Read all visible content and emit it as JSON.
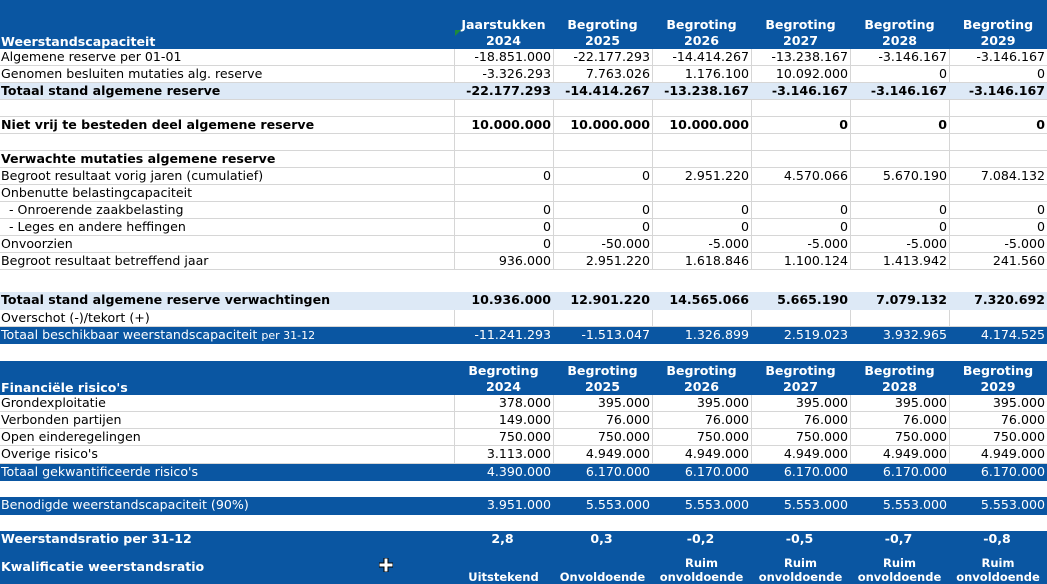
{
  "years": [
    "2024",
    "2025",
    "2026",
    "2027",
    "2028",
    "2029"
  ],
  "header1": {
    "title": "Weerstandscapaciteit",
    "cols": [
      "Jaarstukken",
      "Begroting",
      "Begroting",
      "Begroting",
      "Begroting",
      "Begroting"
    ]
  },
  "rows1": [
    {
      "label": "Algemene reserve per 01-01",
      "values": [
        "-18.851.000",
        "-22.177.293",
        "-14.414.267",
        "-13.238.167",
        "-3.146.167",
        "-3.146.167"
      ]
    },
    {
      "label": "Genomen besluiten mutaties alg. reserve",
      "values": [
        "-3.326.293",
        "7.763.026",
        "1.176.100",
        "10.092.000",
        "0",
        "0"
      ]
    },
    {
      "label": "Totaal stand algemene reserve",
      "values": [
        "-22.177.293",
        "-14.414.267",
        "-13.238.167",
        "-3.146.167",
        "-3.146.167",
        "-3.146.167"
      ]
    },
    {
      "label": "",
      "values": [
        "",
        "",
        "",
        "",
        "",
        ""
      ]
    },
    {
      "label": "Niet vrij te besteden deel algemene reserve",
      "values": [
        "10.000.000",
        "10.000.000",
        "10.000.000",
        "0",
        "0",
        "0"
      ]
    },
    {
      "label": "",
      "values": [
        "",
        "",
        "",
        "",
        "",
        ""
      ]
    },
    {
      "label": "Verwachte mutaties algemene reserve",
      "values": [
        "",
        "",
        "",
        "",
        "",
        ""
      ]
    },
    {
      "label": "Begroot resultaat vorig jaren (cumulatief)",
      "values": [
        "0",
        "0",
        "2.951.220",
        "4.570.066",
        "5.670.190",
        "7.084.132"
      ]
    },
    {
      "label": "Onbenutte belastingcapaciteit",
      "values": [
        "",
        "",
        "",
        "",
        "",
        ""
      ]
    },
    {
      "label": "  - Onroerende zaakbelasting",
      "values": [
        "0",
        "0",
        "0",
        "0",
        "0",
        "0"
      ]
    },
    {
      "label": "  - Leges en andere heffingen",
      "values": [
        "0",
        "0",
        "0",
        "0",
        "0",
        "0"
      ]
    },
    {
      "label": "Onvoorzien",
      "values": [
        "0",
        "-50.000",
        "-5.000",
        "-5.000",
        "-5.000",
        "-5.000"
      ]
    },
    {
      "label": "Begroot resultaat betreffend jaar",
      "values": [
        "936.000",
        "2.951.220",
        "1.618.846",
        "1.100.124",
        "1.413.942",
        "241.560"
      ]
    }
  ],
  "totaal_verwachtingen": {
    "label": "Totaal stand algemene reserve verwachtingen",
    "values": [
      "10.936.000",
      "12.901.220",
      "14.565.066",
      "5.665.190",
      "7.079.132",
      "7.320.692"
    ]
  },
  "overschot": {
    "label": "Overschot (-)/tekort (+)"
  },
  "beschikbaar": {
    "label": "Totaal beschikbaar weerstandscapaciteit",
    "suffix": "per 31-12",
    "values": [
      "-11.241.293",
      "-1.513.047",
      "1.326.899",
      "2.519.023",
      "3.932.965",
      "4.174.525"
    ]
  },
  "header2": {
    "title": "Financiële risico's",
    "cols": [
      "Begroting",
      "Begroting",
      "Begroting",
      "Begroting",
      "Begroting",
      "Begroting"
    ]
  },
  "rows2": [
    {
      "label": "Grondexploitatie",
      "values": [
        "378.000",
        "395.000",
        "395.000",
        "395.000",
        "395.000",
        "395.000"
      ]
    },
    {
      "label": "Verbonden partijen",
      "values": [
        "149.000",
        "76.000",
        "76.000",
        "76.000",
        "76.000",
        "76.000"
      ]
    },
    {
      "label": "Open einderegelingen",
      "values": [
        "750.000",
        "750.000",
        "750.000",
        "750.000",
        "750.000",
        "750.000"
      ]
    },
    {
      "label": "Overige risico's",
      "values": [
        "3.113.000",
        "4.949.000",
        "4.949.000",
        "4.949.000",
        "4.949.000",
        "4.949.000"
      ]
    }
  ],
  "totaal_risicos": {
    "label": "Totaal gekwantificeerde risico's",
    "values": [
      "4.390.000",
      "6.170.000",
      "6.170.000",
      "6.170.000",
      "6.170.000",
      "6.170.000"
    ]
  },
  "benodigd": {
    "label": "Benodigde weerstandscapaciteit (90%)",
    "values": [
      "3.951.000",
      "5.553.000",
      "5.553.000",
      "5.553.000",
      "5.553.000",
      "5.553.000"
    ]
  },
  "ratio": {
    "label": "Weerstandsratio per 31-12",
    "values": [
      "2,8",
      "0,3",
      "-0,2",
      "-0,5",
      "-0,7",
      "-0,8"
    ]
  },
  "kwalificatie": {
    "label": "Kwalificatie weerstandsratio",
    "values": [
      [
        "",
        "Uitstekend"
      ],
      [
        "",
        "Onvoldoende"
      ],
      [
        "Ruim",
        "onvoldoende"
      ],
      [
        "Ruim",
        "onvoldoende"
      ],
      [
        "Ruim",
        "onvoldoende"
      ],
      [
        "Ruim",
        "onvoldoende"
      ]
    ]
  },
  "icons": {
    "cursor": "crosshair-cursor-icon",
    "cell_marker": "error-triangle-icon"
  },
  "colors": {
    "header_blue": "#0a56a2",
    "total_light": "#dde9f6"
  }
}
